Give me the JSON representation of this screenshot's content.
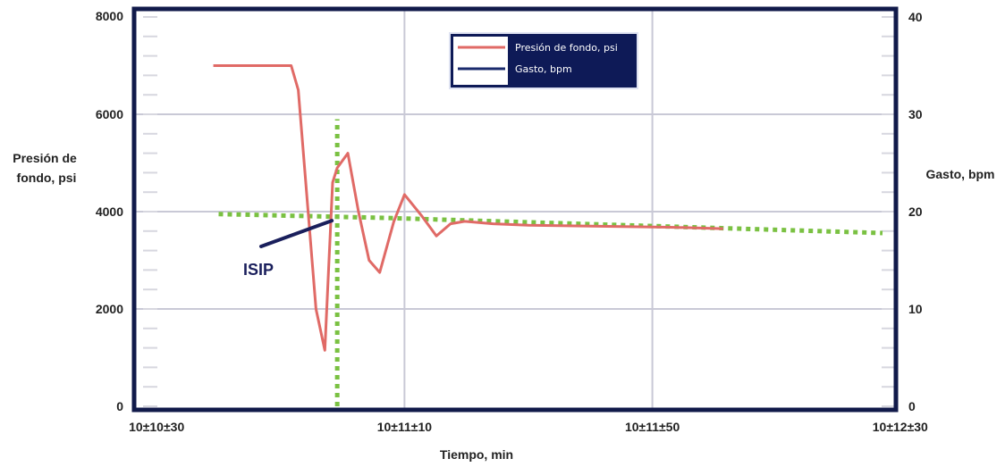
{
  "chart_data": {
    "type": "line",
    "xlabel": "Tiempo, min",
    "ylabel": "Presión de fondo, psi",
    "y2label": "Gasto, bpm",
    "x_ticks": [
      "10±10±30",
      "10±11±10",
      "10±11±50",
      "10±12±30"
    ],
    "x_range_minutes": [
      0,
      2
    ],
    "ylim": [
      0,
      8000
    ],
    "y_ticks": [
      0,
      2000,
      4000,
      6000,
      8000
    ],
    "y2lim": [
      0,
      40
    ],
    "y2_ticks": [
      0,
      10,
      20,
      30,
      40
    ],
    "grid": true,
    "legend_position": "top-center",
    "series": [
      {
        "name": "Presión de fondo, psi",
        "color": "#e06a66",
        "axis": "left",
        "x": [
          0.11,
          0.33,
          0.35,
          0.38,
          0.4,
          0.425,
          0.447,
          0.46,
          0.49,
          0.52,
          0.55,
          0.58,
          0.62,
          0.65,
          0.7,
          0.74,
          0.78,
          0.82,
          0.9,
          1.0,
          1.2,
          1.4,
          1.55
        ],
        "values": [
          7000,
          7000,
          6500,
          3800,
          2000,
          1150,
          4600,
          4900,
          5200,
          4000,
          3000,
          2750,
          3800,
          4350,
          3900,
          3500,
          3750,
          3800,
          3750,
          3720,
          3700,
          3680,
          3650
        ]
      },
      {
        "name": "Gasto, bpm",
        "color": "#1a2a6c",
        "axis": "right",
        "x": [],
        "values": []
      }
    ],
    "reference_lines": [
      {
        "style": "dotted",
        "color": "#7ac142",
        "x": [
          0.125,
          0.6,
          2.0
        ],
        "values": [
          3950,
          3870,
          3560
        ]
      },
      {
        "style": "dotted",
        "color": "#7ac142",
        "x": [
          0.46,
          0.46
        ],
        "values": [
          0,
          5900
        ]
      }
    ],
    "annotations": [
      {
        "text": "ISIP",
        "point_x": 0.46,
        "point_y": 3870
      }
    ]
  }
}
